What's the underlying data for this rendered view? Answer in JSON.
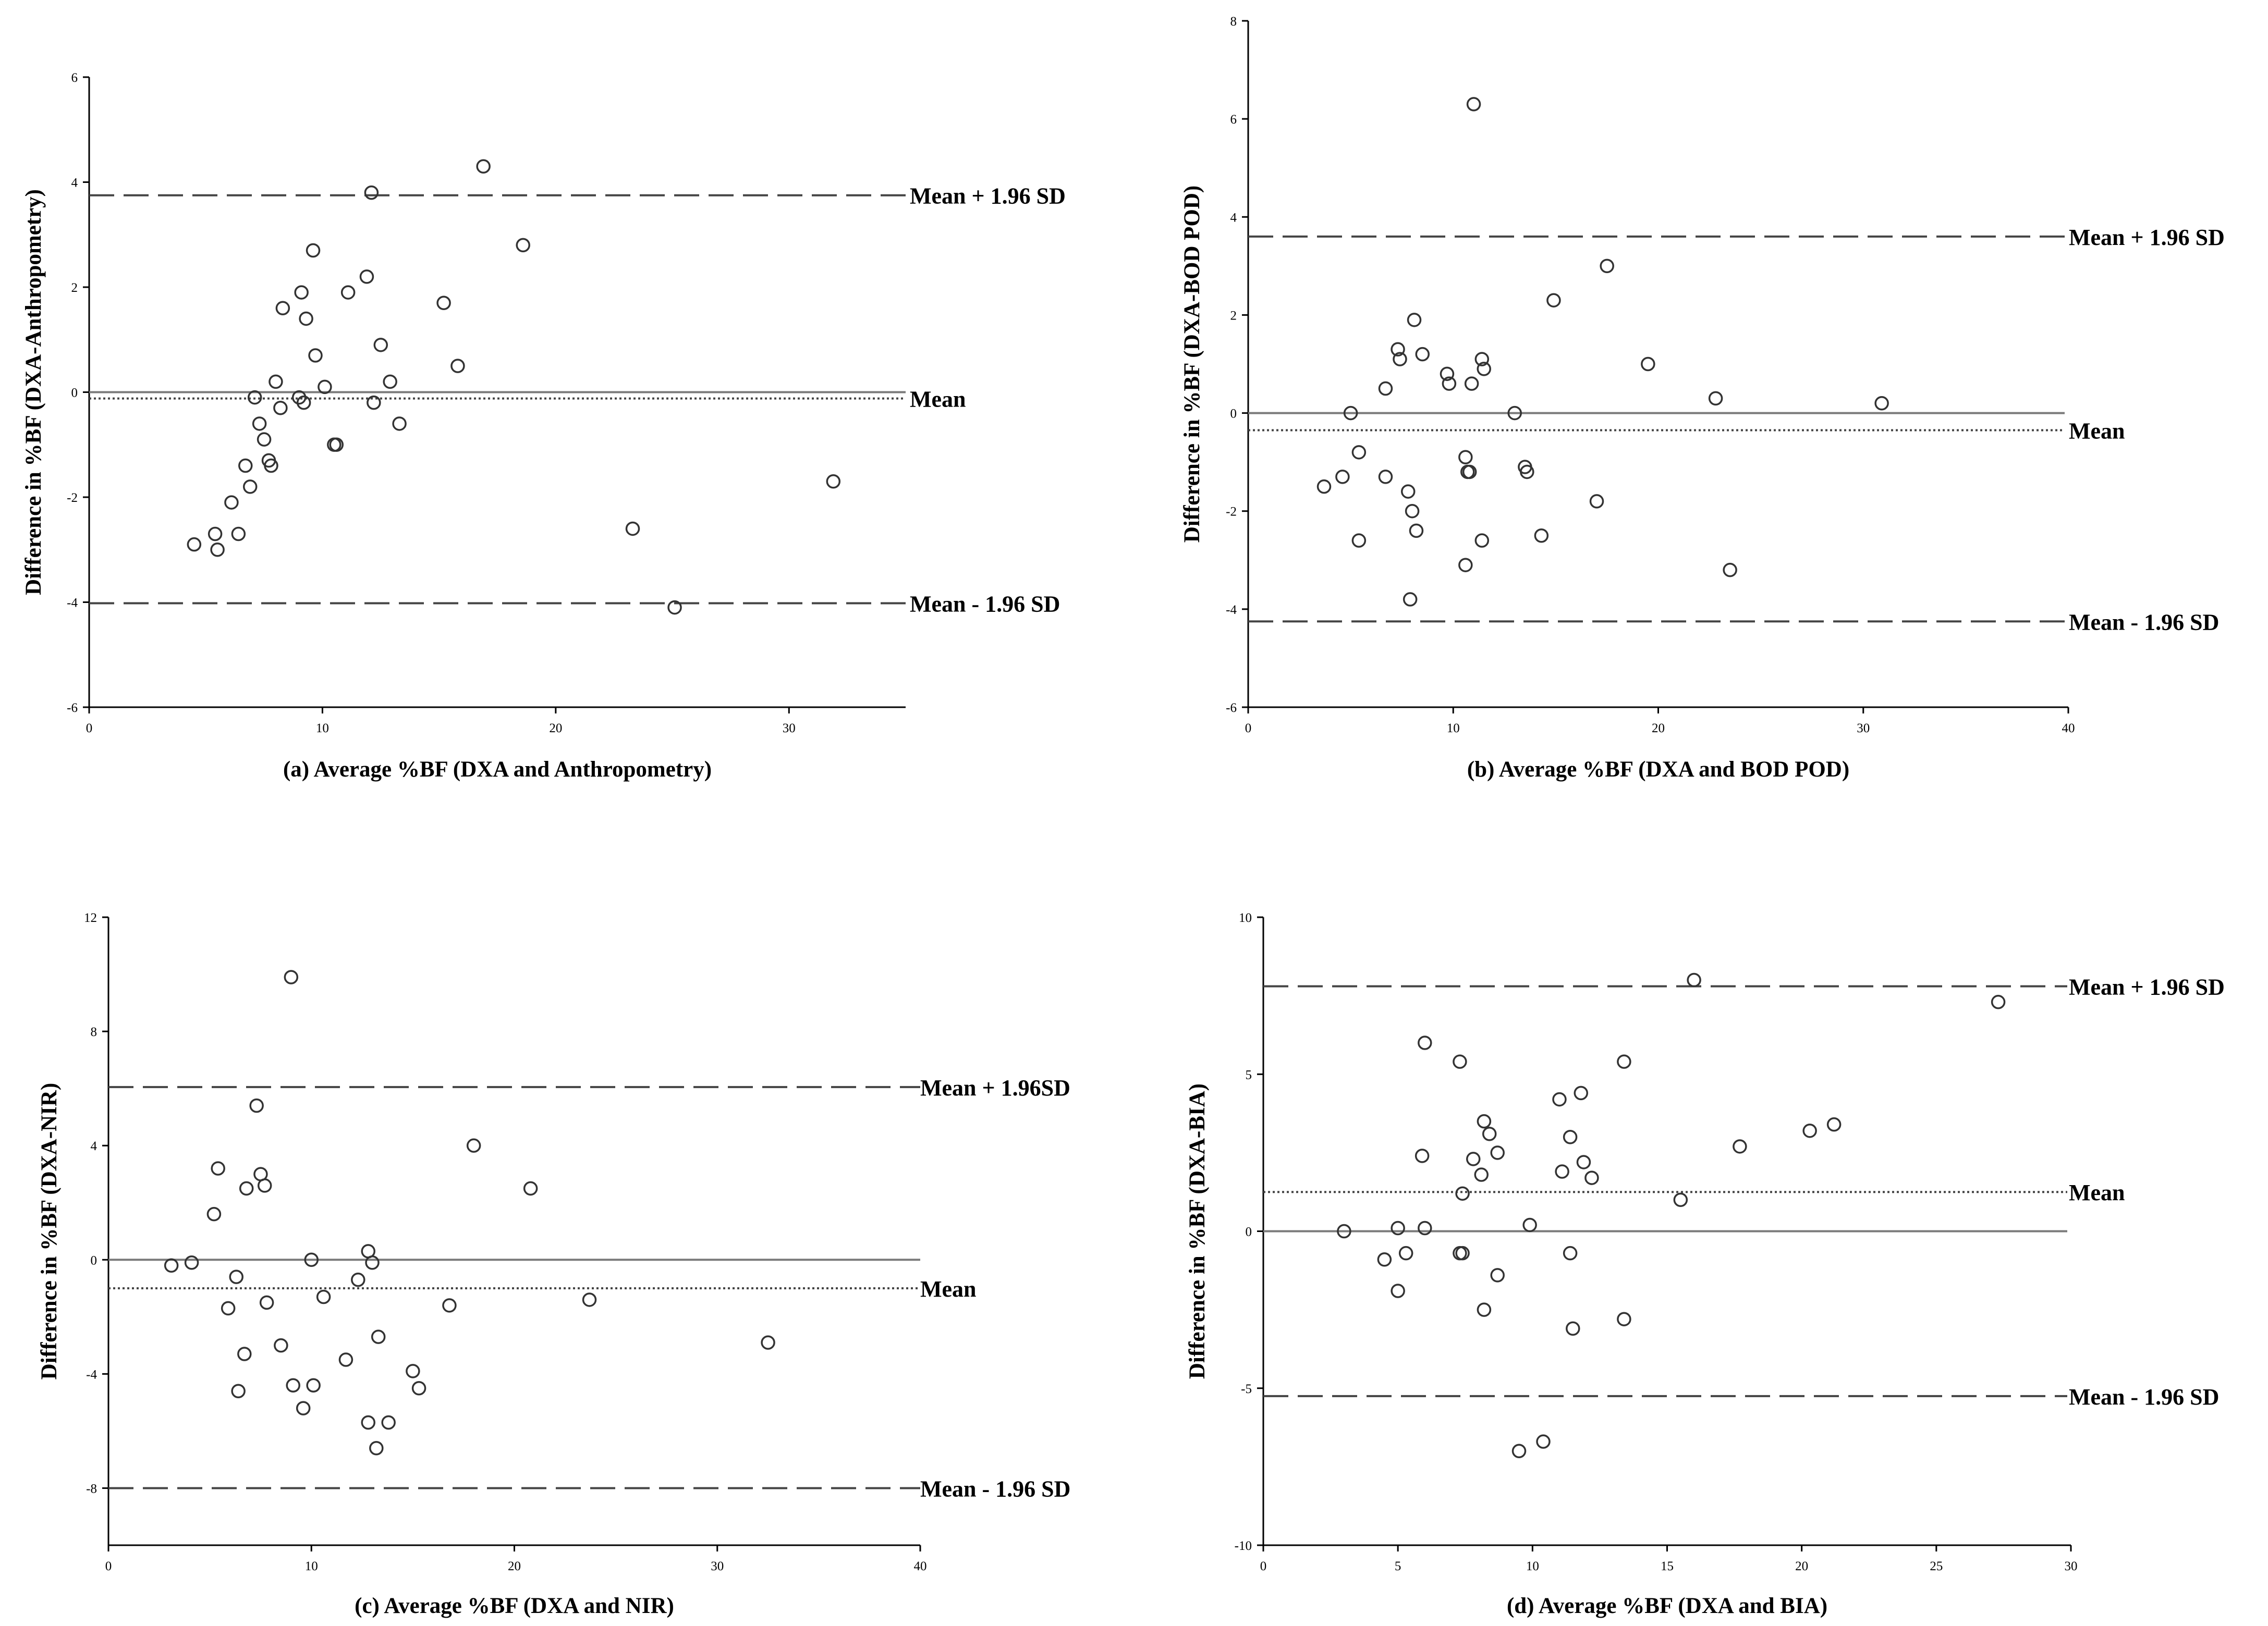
{
  "chart_data": [
    {
      "type": "scatter",
      "xlabel": "(a) Average %BF (DXA and Anthropometry)",
      "ylabel": "Difference in %BF (DXA-Anthropometry)",
      "xlim": [
        0,
        35
      ],
      "ylim": [
        -6,
        6
      ],
      "xticks": [
        "0",
        "10",
        "20",
        "30"
      ],
      "yticks": [
        "-6",
        "-4",
        "-2",
        "0",
        "2",
        "4",
        "6"
      ],
      "reference_lines": {
        "zero": 0,
        "mean": -0.12,
        "upper": 3.75,
        "lower": -4.02,
        "mean_label": "Mean",
        "upper_label": "Mean + 1.96 SD",
        "lower_label": "Mean - 1.96 SD"
      },
      "points": [
        [
          4.5,
          -2.9
        ],
        [
          5.4,
          -2.7
        ],
        [
          5.5,
          -3.0
        ],
        [
          6.1,
          -2.1
        ],
        [
          6.4,
          -2.7
        ],
        [
          6.7,
          -1.4
        ],
        [
          6.9,
          -1.8
        ],
        [
          7.1,
          -0.1
        ],
        [
          7.3,
          -0.6
        ],
        [
          7.5,
          -0.9
        ],
        [
          7.7,
          -1.3
        ],
        [
          7.8,
          -1.4
        ],
        [
          8.0,
          0.2
        ],
        [
          8.2,
          -0.3
        ],
        [
          8.3,
          1.6
        ],
        [
          9.0,
          -0.1
        ],
        [
          9.1,
          1.9
        ],
        [
          9.2,
          -0.2
        ],
        [
          9.3,
          1.4
        ],
        [
          9.6,
          2.7
        ],
        [
          9.7,
          0.7
        ],
        [
          10.1,
          0.1
        ],
        [
          10.5,
          -1.0
        ],
        [
          10.6,
          -1.0
        ],
        [
          11.1,
          1.9
        ],
        [
          11.9,
          2.2
        ],
        [
          12.1,
          3.8
        ],
        [
          12.2,
          -0.2
        ],
        [
          12.5,
          0.9
        ],
        [
          12.9,
          0.2
        ],
        [
          13.3,
          -0.6
        ],
        [
          15.2,
          1.7
        ],
        [
          15.8,
          0.5
        ],
        [
          16.9,
          4.3
        ],
        [
          18.6,
          2.8
        ],
        [
          23.3,
          -2.6
        ],
        [
          25.1,
          -4.1
        ],
        [
          31.9,
          -1.7
        ]
      ]
    },
    {
      "type": "scatter",
      "xlabel": "(b) Average %BF (DXA and BOD POD)",
      "ylabel": "Difference in %BF (DXA-BOD POD)",
      "xlim": [
        0,
        40
      ],
      "ylim": [
        -6,
        8
      ],
      "xticks": [
        "0",
        "10",
        "20",
        "30",
        "40"
      ],
      "yticks": [
        "-6",
        "-4",
        "-2",
        "0",
        "2",
        "4",
        "6",
        "8"
      ],
      "reference_lines": {
        "zero": 0,
        "mean": -0.35,
        "upper": 3.6,
        "lower": -4.25,
        "mean_label": "Mean",
        "upper_label": "Mean + 1.96 SD",
        "lower_label": "Mean - 1.96 SD"
      },
      "points": [
        [
          3.7,
          -1.5
        ],
        [
          4.6,
          -1.3
        ],
        [
          5.0,
          0.0
        ],
        [
          5.4,
          -0.8
        ],
        [
          5.4,
          -2.6
        ],
        [
          6.7,
          0.5
        ],
        [
          6.7,
          -1.3
        ],
        [
          7.3,
          1.3
        ],
        [
          7.4,
          1.1
        ],
        [
          7.8,
          -1.6
        ],
        [
          7.9,
          -3.8
        ],
        [
          8.0,
          -2.0
        ],
        [
          8.1,
          1.9
        ],
        [
          8.2,
          -2.4
        ],
        [
          8.5,
          1.2
        ],
        [
          9.7,
          0.8
        ],
        [
          9.8,
          0.6
        ],
        [
          10.6,
          -0.9
        ],
        [
          10.6,
          -3.1
        ],
        [
          10.7,
          -1.2
        ],
        [
          10.8,
          -1.2
        ],
        [
          10.9,
          0.6
        ],
        [
          11.0,
          6.3
        ],
        [
          11.4,
          1.1
        ],
        [
          11.4,
          -2.6
        ],
        [
          11.5,
          0.9
        ],
        [
          13.0,
          0.0
        ],
        [
          13.5,
          -1.1
        ],
        [
          13.6,
          -1.2
        ],
        [
          14.3,
          -2.5
        ],
        [
          14.9,
          2.3
        ],
        [
          17.0,
          -1.8
        ],
        [
          17.5,
          3.0
        ],
        [
          19.5,
          1.0
        ],
        [
          22.8,
          0.3
        ],
        [
          23.5,
          -3.2
        ],
        [
          30.9,
          0.2
        ]
      ]
    },
    {
      "type": "scatter",
      "xlabel": "(c) Average %BF (DXA and NIR)",
      "ylabel": "Difference in %BF (DXA-NIR)",
      "xlim": [
        0,
        40
      ],
      "ylim": [
        -10,
        12
      ],
      "xticks": [
        "0",
        "10",
        "20",
        "30",
        "40"
      ],
      "yticks": [
        "-8",
        "-4",
        "0",
        "4",
        "8",
        "12"
      ],
      "reference_lines": {
        "zero": 0,
        "mean": -1.0,
        "upper": 6.05,
        "lower": -8.0,
        "mean_label": "Mean",
        "upper_label": "Mean + 1.96SD",
        "lower_label": "Mean - 1.96 SD"
      },
      "points": [
        [
          3.1,
          -0.2
        ],
        [
          4.1,
          -0.1
        ],
        [
          5.2,
          1.6
        ],
        [
          5.4,
          3.2
        ],
        [
          5.9,
          -1.7
        ],
        [
          6.3,
          -0.6
        ],
        [
          6.4,
          -4.6
        ],
        [
          6.7,
          -3.3
        ],
        [
          6.8,
          2.5
        ],
        [
          7.3,
          5.4
        ],
        [
          7.5,
          3.0
        ],
        [
          7.7,
          2.6
        ],
        [
          7.8,
          -1.5
        ],
        [
          8.5,
          -3.0
        ],
        [
          9.0,
          9.9
        ],
        [
          9.1,
          -4.4
        ],
        [
          9.6,
          -5.2
        ],
        [
          10.0,
          0.0
        ],
        [
          10.1,
          -4.4
        ],
        [
          10.6,
          -1.3
        ],
        [
          11.7,
          -3.5
        ],
        [
          12.3,
          -0.7
        ],
        [
          12.8,
          0.3
        ],
        [
          12.8,
          -5.7
        ],
        [
          13.0,
          -0.1
        ],
        [
          13.2,
          -6.6
        ],
        [
          13.3,
          -2.7
        ],
        [
          13.8,
          -5.7
        ],
        [
          15.0,
          -3.9
        ],
        [
          15.3,
          -4.5
        ],
        [
          16.8,
          -1.6
        ],
        [
          18.0,
          4.0
        ],
        [
          20.8,
          2.5
        ],
        [
          23.7,
          -1.4
        ],
        [
          32.5,
          -2.9
        ]
      ]
    },
    {
      "type": "scatter",
      "xlabel": "(d) Average %BF (DXA and BIA)",
      "ylabel": "Difference in %BF (DXA-BIA)",
      "xlim": [
        0,
        30
      ],
      "ylim": [
        -10,
        10
      ],
      "xticks": [
        "0",
        "5",
        "10",
        "15",
        "20",
        "25",
        "30"
      ],
      "yticks": [
        "-10",
        "-5",
        "0",
        "5",
        "10"
      ],
      "reference_lines": {
        "zero": 0,
        "mean": 1.25,
        "upper": 7.8,
        "lower": -5.25,
        "mean_label": "Mean",
        "upper_label": "Mean + 1.96 SD",
        "lower_label": "Mean - 1.96 SD"
      },
      "points": [
        [
          3.0,
          0.0
        ],
        [
          4.5,
          -0.9
        ],
        [
          5.0,
          0.1
        ],
        [
          5.0,
          -1.9
        ],
        [
          5.3,
          -0.7
        ],
        [
          5.9,
          2.4
        ],
        [
          6.0,
          6.0
        ],
        [
          6.0,
          0.1
        ],
        [
          7.3,
          5.4
        ],
        [
          7.3,
          -0.7
        ],
        [
          7.4,
          -0.7
        ],
        [
          7.4,
          1.2
        ],
        [
          7.8,
          2.3
        ],
        [
          8.1,
          1.8
        ],
        [
          8.2,
          3.5
        ],
        [
          8.2,
          -2.5
        ],
        [
          8.4,
          3.1
        ],
        [
          8.7,
          2.5
        ],
        [
          8.7,
          -1.4
        ],
        [
          9.5,
          -7.0
        ],
        [
          9.9,
          0.2
        ],
        [
          10.4,
          -6.7
        ],
        [
          11.0,
          4.2
        ],
        [
          11.1,
          1.9
        ],
        [
          11.4,
          3.0
        ],
        [
          11.4,
          -0.7
        ],
        [
          11.5,
          -3.1
        ],
        [
          11.8,
          4.4
        ],
        [
          11.9,
          2.2
        ],
        [
          12.2,
          1.7
        ],
        [
          13.4,
          5.4
        ],
        [
          13.4,
          -2.8
        ],
        [
          15.5,
          1.0
        ],
        [
          16.0,
          8.0
        ],
        [
          17.7,
          2.7
        ],
        [
          20.3,
          3.2
        ],
        [
          21.2,
          3.4
        ],
        [
          27.3,
          7.3
        ]
      ]
    }
  ]
}
